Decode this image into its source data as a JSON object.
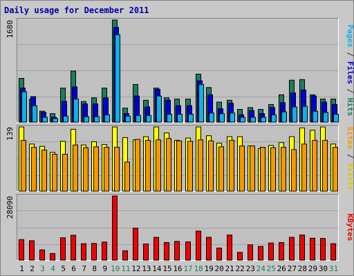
{
  "chart_data": {
    "type": "bar",
    "title": "Daily usage for December 2011",
    "categories": [
      "1",
      "2",
      "3",
      "4",
      "5",
      "6",
      "7",
      "8",
      "9",
      "10",
      "11",
      "12",
      "13",
      "14",
      "15",
      "16",
      "17",
      "18",
      "19",
      "20",
      "21",
      "22",
      "23",
      "24",
      "25",
      "26",
      "27",
      "28",
      "29",
      "30",
      "31"
    ],
    "weekend_days": [
      "3",
      "4",
      "10",
      "11",
      "17",
      "18",
      "24",
      "25",
      "31"
    ],
    "panels": [
      {
        "id": "hits",
        "ymax_label": "1680",
        "ylim": [
          0,
          1680
        ],
        "series": [
          {
            "name": "Hits",
            "color": "#1c7c60",
            "values": [
              720,
              380,
              180,
              140,
              560,
              840,
              340,
              400,
              560,
              1680,
              230,
              620,
              360,
              560,
              400,
              380,
              380,
              790,
              570,
              330,
              360,
              210,
              240,
              210,
              290,
              450,
              690,
              700,
              450,
              380,
              380
            ]
          },
          {
            "name": "Files",
            "color": "#0000d8",
            "values": [
              560,
              420,
              160,
              80,
              340,
              580,
              300,
              300,
              400,
              1560,
              140,
              430,
              250,
              540,
              360,
              270,
              270,
              680,
              450,
              220,
              310,
              120,
              190,
              140,
              240,
              320,
              480,
              530,
              430,
              330,
              290
            ]
          },
          {
            "name": "Pages",
            "color": "#10b0e8",
            "values": [
              500,
              270,
              80,
              60,
              100,
              380,
              90,
              90,
              120,
              1440,
              100,
              110,
              110,
              430,
              130,
              130,
              130,
              620,
              150,
              140,
              150,
              80,
              80,
              80,
              120,
              170,
              250,
              260,
              180,
              160,
              130
            ]
          }
        ]
      },
      {
        "id": "visits",
        "ymax_label": "139",
        "ylim": [
          0,
          139
        ],
        "series": [
          {
            "name": "Visits",
            "color": "#ffff00",
            "values": [
              139,
              102,
              97,
              84,
              108,
              134,
              100,
              107,
              101,
              139,
              116,
              111,
              118,
              139,
              126,
              110,
              115,
              139,
              120,
              104,
              118,
              118,
              98,
              92,
              99,
              105,
              118,
              137,
              132,
              139,
              102
            ]
          },
          {
            "name": "Sites",
            "color": "#f89800",
            "values": [
              110,
              95,
              89,
              80,
              80,
              100,
              94,
              96,
              95,
              95,
              63,
              112,
              110,
              111,
              114,
              109,
              108,
              111,
              109,
              96,
              110,
              98,
              98,
              95,
              94,
              95,
              90,
              102,
              110,
              110,
              95
            ]
          }
        ]
      },
      {
        "id": "kbytes",
        "ymax_label": "28090",
        "ylim": [
          0,
          28090
        ],
        "series": [
          {
            "name": "KBytes",
            "color": "#f00000",
            "values": [
              9000,
              8500,
              4500,
              2900,
              9800,
              10900,
              7200,
              7300,
              7900,
              28090,
              4100,
              14000,
              7100,
              10000,
              7700,
              8200,
              8000,
              12700,
              10000,
              5300,
              11000,
              3400,
              6700,
              6000,
              7500,
              7700,
              10000,
              11000,
              9600,
              9500,
              7200
            ]
          }
        ]
      }
    ],
    "legend_right": [
      {
        "panel": "hits",
        "parts": [
          [
            "Pages",
            "#10b0e8"
          ],
          [
            " / ",
            "#333333"
          ],
          [
            "Files",
            "#0000d8"
          ],
          [
            " / ",
            "#333333"
          ],
          [
            "Hits",
            "#1c7c60"
          ]
        ]
      },
      {
        "panel": "visits",
        "parts": [
          [
            "Sites",
            "#f89800"
          ],
          [
            " / ",
            "#333333"
          ],
          [
            "Visits",
            "#d8c800"
          ]
        ]
      },
      {
        "panel": "kbytes",
        "parts": [
          [
            "KBytes",
            "#f00000"
          ]
        ]
      }
    ],
    "colors": {
      "background": "#c8c8c8",
      "plot_bg": "#c0c0c0",
      "title": "#0000a0",
      "grid": "#a0a0a0",
      "weekday_label": "#000000",
      "weekend_label": "#1c7c60"
    }
  }
}
